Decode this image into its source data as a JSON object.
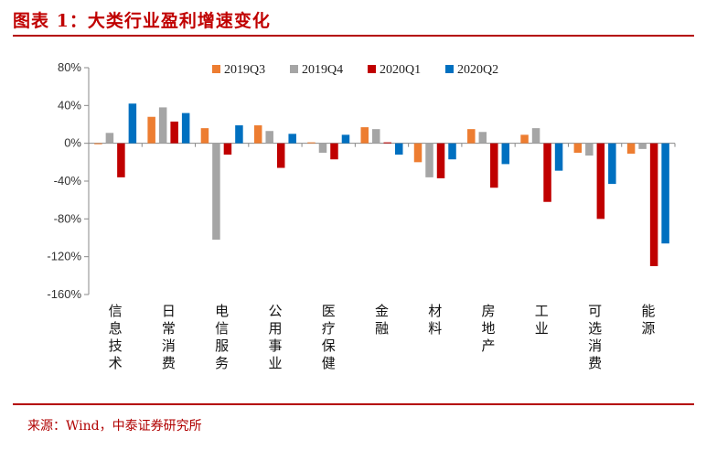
{
  "header": {
    "title": "图表 1：大类行业盈利增速变化"
  },
  "footer": {
    "source": "来源：Wind，中泰证券研究所"
  },
  "chart_data": {
    "type": "bar",
    "title": "图表 1：大类行业盈利增速变化",
    "xlabel": "",
    "ylabel": "",
    "ylim": [
      -160,
      80
    ],
    "yticks": [
      80,
      40,
      0,
      -40,
      -80,
      -120,
      -160
    ],
    "ytick_labels": [
      "80%",
      "40%",
      "0%",
      "-40%",
      "-80%",
      "-120%",
      "-160%"
    ],
    "legend_position": "top",
    "categories": [
      "信息技术",
      "日常消费",
      "电信服务",
      "公用事业",
      "医疗保健",
      "金融",
      "材料",
      "房地产",
      "工业",
      "可选消费",
      "能源"
    ],
    "series": [
      {
        "name": "2019Q3",
        "color": "#ed7d31",
        "values": [
          -1,
          28,
          16,
          19,
          1,
          17,
          -20,
          15,
          9,
          -10,
          -11
        ]
      },
      {
        "name": "2019Q4",
        "color": "#a5a5a5",
        "values": [
          11,
          38,
          -102,
          13,
          -10,
          15,
          -36,
          12,
          16,
          -13,
          -6
        ]
      },
      {
        "name": "2020Q1",
        "color": "#c00000",
        "values": [
          -36,
          23,
          -12,
          -26,
          -17,
          1,
          -37,
          -47,
          -62,
          -80,
          -130
        ]
      },
      {
        "name": "2020Q2",
        "color": "#0070c0",
        "values": [
          42,
          32,
          19,
          10,
          9,
          -12,
          -17,
          -22,
          -29,
          -43,
          -106
        ]
      }
    ]
  }
}
